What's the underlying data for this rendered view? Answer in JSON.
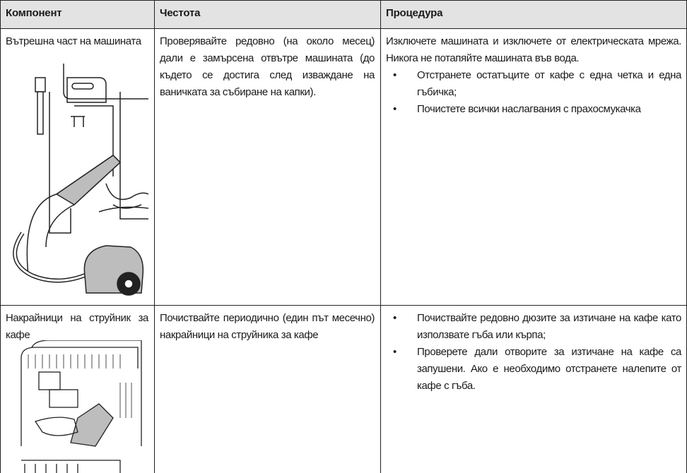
{
  "table": {
    "header": [
      "Компонент",
      "Честота",
      "Процедура"
    ],
    "rows": [
      {
        "component": "Вътрешна част на машината",
        "frequency": "Проверявайте редовно (на около месец) дали е замърсена отвътре машината (до където се достига след изваждане на ваничката за събиране на капки).",
        "procedure_intro": "Изключете машината и изключете от електрическата мрежа. Никога не потапяйте машината във вода.",
        "procedure_bullets": [
          "Отстранете остатъците от кафе с една четка и една гъбичка;",
          "Почистете всички наслагвания с прахосмукачка"
        ]
      },
      {
        "component": "Накрайници на струйник за кафе",
        "frequency": "Почиствайте периодично (един път месечно) накрайници на струйника за кафе",
        "procedure_intro": null,
        "procedure_bullets": [
          "Почиствайте редовно дюзите за изтичане на кафе като използвате гъба или кърпа;",
          "Проверете дали отворите за изтичане на кафе са запушени. Ако е необходимо отстранете налепите от кафе с гъба."
        ]
      }
    ]
  }
}
